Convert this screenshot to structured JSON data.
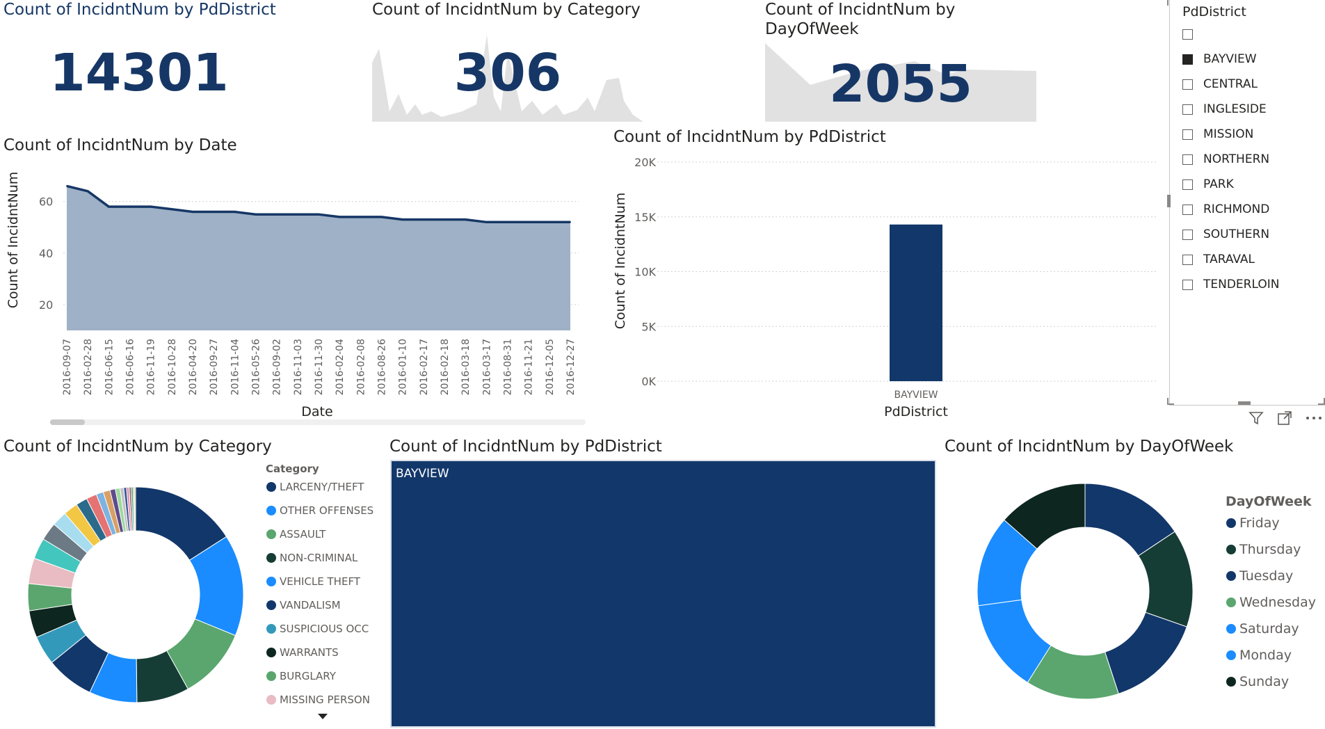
{
  "kpi_cards": [
    {
      "title": "Count of IncidntNum by PdDistrict",
      "value": "14301"
    },
    {
      "title": "Count of IncidntNum by Category",
      "value": "306"
    },
    {
      "title_line1": "Count of IncidntNum by",
      "title_line2": "DayOfWeek",
      "value": "2055"
    }
  ],
  "slicer": {
    "title": "PdDistrict",
    "items": [
      {
        "label": "",
        "checked": false
      },
      {
        "label": "BAYVIEW",
        "checked": true
      },
      {
        "label": "CENTRAL",
        "checked": false
      },
      {
        "label": "INGLESIDE",
        "checked": false
      },
      {
        "label": "MISSION",
        "checked": false
      },
      {
        "label": "NORTHERN",
        "checked": false
      },
      {
        "label": "PARK",
        "checked": false
      },
      {
        "label": "RICHMOND",
        "checked": false
      },
      {
        "label": "SOUTHERN",
        "checked": false
      },
      {
        "label": "TARAVAL",
        "checked": false
      },
      {
        "label": "TENDERLOIN",
        "checked": false
      }
    ]
  },
  "visual_header_icons": [
    "filter-icon",
    "focus-mode-icon",
    "more-options-icon"
  ],
  "colors": {
    "navy": "#12376a",
    "area_fill": "#9fb1c6",
    "area_line": "#163766"
  },
  "chart_data": [
    {
      "type": "area",
      "title": "Count of IncidntNum by Date",
      "xlabel": "Date",
      "ylabel": "Count of IncidntNum",
      "x": [
        "2016-09-07",
        "2016-02-28",
        "2016-06-15",
        "2016-06-16",
        "2016-11-19",
        "2016-10-28",
        "2016-04-20",
        "2016-09-27",
        "2016-11-04",
        "2016-05-26",
        "2016-09-02",
        "2016-11-03",
        "2016-11-30",
        "2016-02-04",
        "2016-02-08",
        "2016-08-26",
        "2016-01-10",
        "2016-02-17",
        "2016-02-18",
        "2016-03-18",
        "2016-03-17",
        "2016-08-31",
        "2016-11-21",
        "2016-12-05",
        "2016-12-27"
      ],
      "values": [
        66,
        64,
        58,
        58,
        58,
        57,
        56,
        56,
        56,
        55,
        55,
        55,
        55,
        54,
        54,
        54,
        53,
        53,
        53,
        53,
        52,
        52,
        52,
        52,
        52
      ],
      "yticks": [
        20,
        40,
        60
      ],
      "ylim": [
        10,
        68
      ],
      "grid": true
    },
    {
      "type": "bar",
      "title": "Count of IncidntNum by PdDistrict",
      "xlabel": "PdDistrict",
      "ylabel": "Count of IncidntNum",
      "categories": [
        "BAYVIEW"
      ],
      "values": [
        14301
      ],
      "yticks": [
        "0K",
        "5K",
        "10K",
        "15K",
        "20K"
      ],
      "ylim": [
        0,
        20000
      ],
      "grid": true
    },
    {
      "type": "pie",
      "title": "Count of IncidntNum by Category",
      "legend_title": "Category",
      "legend": [
        "LARCENY/THEFT",
        "OTHER OFFENSES",
        "ASSAULT",
        "NON-CRIMINAL",
        "VEHICLE THEFT",
        "VANDALISM",
        "SUSPICIOUS OCC",
        "WARRANTS",
        "BURGLARY",
        "MISSING PERSON"
      ],
      "values": [
        2950,
        2820,
        1990,
        1460,
        1330,
        1330,
        810,
        750,
        750,
        710,
        580,
        500,
        420,
        400,
        320,
        290,
        200,
        190,
        150,
        130,
        100,
        80,
        70,
        60,
        50,
        40,
        30
      ],
      "colors": [
        "#12376a",
        "#1a8cff",
        "#5aa66e",
        "#163d35",
        "#1a8cff",
        "#12376a",
        "#3399bb",
        "#0d2620",
        "#5aa66e",
        "#e8bcc2",
        "#43c6bd",
        "#6b7a85",
        "#a8ddf0",
        "#f2c744",
        "#2a6b8c",
        "#e57373",
        "#7cb3e0",
        "#d9a066",
        "#5f4b8b",
        "#9fd8a0",
        "#c1c1c1",
        "#3b5998",
        "#e48fb1",
        "#8d6e63",
        "#26a69a",
        "#ffb74d",
        "#90a4ae"
      ]
    },
    {
      "type": "treemap",
      "title": "Count of IncidntNum by PdDistrict",
      "categories": [
        "BAYVIEW"
      ],
      "values": [
        14301
      ]
    },
    {
      "type": "pie",
      "title": "Count of IncidntNum by DayOfWeek",
      "legend_title": "DayOfWeek",
      "legend": [
        "Friday",
        "Thursday",
        "Tuesday",
        "Wednesday",
        "Saturday",
        "Monday",
        "Sunday"
      ],
      "values": [
        2240,
        2100,
        2090,
        2000,
        1990,
        1950,
        1930
      ],
      "colors": [
        "#12376a",
        "#163d35",
        "#12376a",
        "#5aa66e",
        "#1a8cff",
        "#1a8cff",
        "#0d2620"
      ]
    }
  ]
}
